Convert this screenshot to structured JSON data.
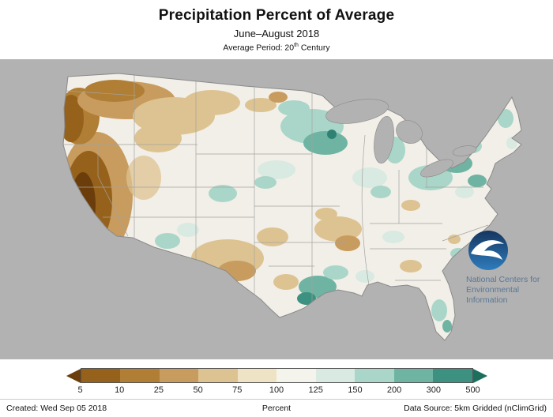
{
  "header": {
    "title": "Precipitation Percent of Average",
    "subtitle": "June–August 2018",
    "average_period_prefix": "Average Period: 20",
    "average_period_superscript": "th",
    "average_period_suffix": " Century"
  },
  "map": {
    "agency_line1": "National Centers for",
    "agency_line2": "Environmental",
    "agency_line3": "Information",
    "noaa_logo": "noaa-circle-seagull-logo",
    "background_color": "#b2b2b2",
    "land_neutral_color": "#f2efe8",
    "noaa_blue_top": "#16365f",
    "noaa_blue_bottom": "#2e7cbd"
  },
  "legend": {
    "unit_label": "Percent",
    "tick_labels": [
      "5",
      "10",
      "25",
      "50",
      "75",
      "100",
      "125",
      "150",
      "200",
      "300",
      "500"
    ],
    "segment_colors": [
      "#96611a",
      "#b07f35",
      "#c89c5e",
      "#ddc392",
      "#eee3c4",
      "#f4f3ec",
      "#d8eae2",
      "#a9d6c9",
      "#6fb4a3",
      "#3c9180"
    ],
    "arrow_left_color": "#6b3d0b",
    "arrow_right_color": "#1c6e5d"
  },
  "footer": {
    "created": "Created: Wed Sep 05 2018",
    "data_source": "Data Source: 5km Gridded (nClimGrid)"
  }
}
